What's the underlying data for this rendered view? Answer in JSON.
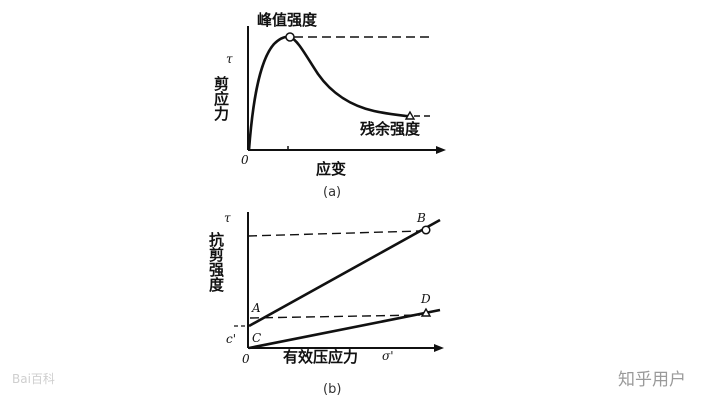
{
  "figure_a": {
    "peak_label": "峰值强度",
    "y_axis_label": "剪应力",
    "y_axis_symbol": "τ",
    "residual_label": "残余强度",
    "origin_label": "0",
    "x_axis_label": "应变",
    "caption": "(a)"
  },
  "figure_b": {
    "y_axis_label": "抗剪强度",
    "y_axis_symbol": "τ",
    "point_a": "A",
    "point_b": "B",
    "point_c": "C",
    "point_d": "D",
    "intercept_label": "c'",
    "origin_label": "0",
    "x_axis_label": "有效压应力",
    "x_axis_symbol": "σ'",
    "caption": "(b)"
  },
  "watermarks": {
    "left": "Bai百科",
    "right": "知乎用户"
  },
  "colors": {
    "ink": "#111111",
    "caption": "#333333",
    "watermark": "#9a9a9a"
  }
}
